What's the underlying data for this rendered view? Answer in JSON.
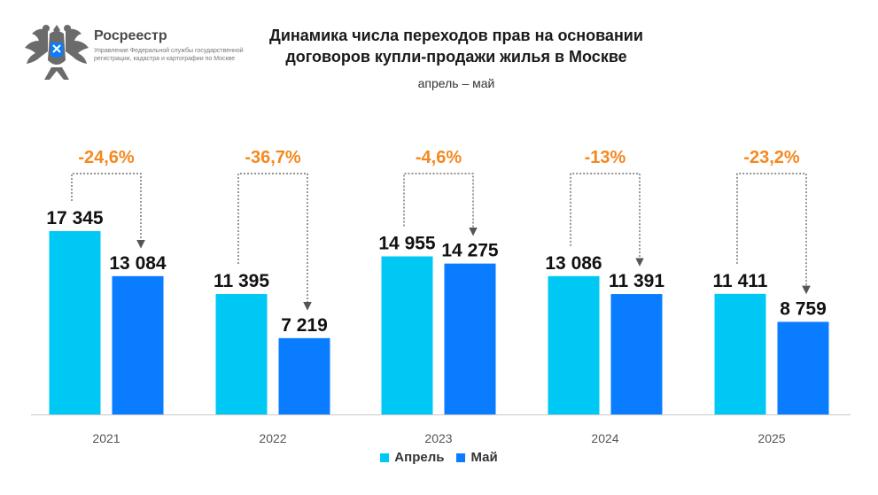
{
  "header": {
    "org_name": "Росреестр",
    "org_subtitle": "Управление Федеральной службы государственной регистрации, кадастра и картографии по Москве",
    "emblem": "double-headed-eagle-emblem"
  },
  "colors": {
    "april": "#00c8f4",
    "may": "#0a7cff",
    "change": "#f5881f",
    "axis": "#c8c8c8",
    "connector": "#555555"
  },
  "chart_data": {
    "type": "bar",
    "title": "Динамика числа переходов прав на основании договоров купли-продажи жилья в Москве",
    "subtitle": "апрель – май",
    "categories": [
      "2021",
      "2022",
      "2023",
      "2024",
      "2025"
    ],
    "series": [
      {
        "name": "Апрель",
        "values": [
          17345,
          11395,
          14955,
          13086,
          11411
        ],
        "labels": [
          "17 345",
          "11 395",
          "14 955",
          "13 086",
          "11 411"
        ]
      },
      {
        "name": "Май",
        "values": [
          13084,
          7219,
          14275,
          11391,
          8759
        ],
        "labels": [
          "13 084",
          "7 219",
          "14 275",
          "11 391",
          "8 759"
        ]
      }
    ],
    "changes": [
      "-24,6%",
      "-36,7%",
      "-4,6%",
      "-13%",
      "-23,2%"
    ],
    "ylim": [
      0,
      18000
    ],
    "grid": false,
    "legend_position": "bottom-center"
  }
}
